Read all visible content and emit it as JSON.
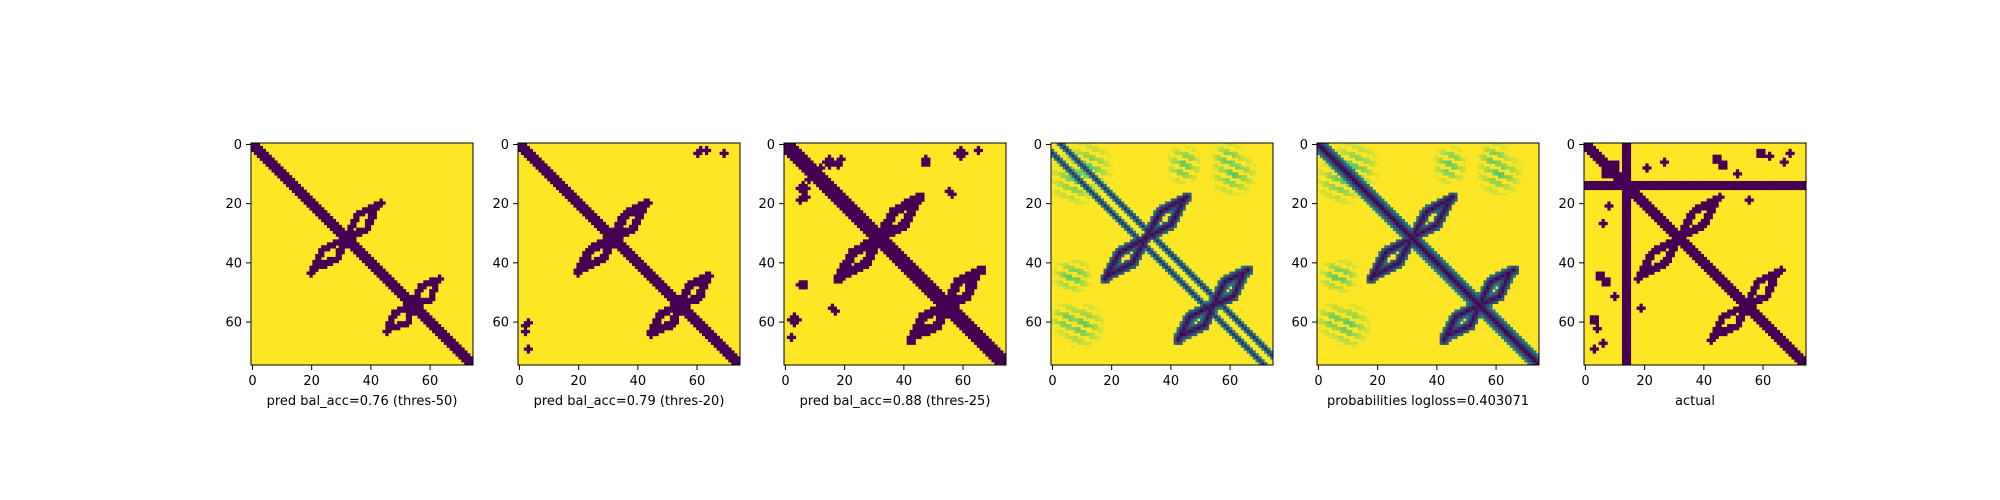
{
  "chart_data": [
    {
      "type": "heatmap",
      "xlabel": "pred bal_acc=0.76 (thres-50)",
      "grid_size": 76,
      "xlim": [
        0,
        75
      ],
      "ylim": [
        75,
        0
      ],
      "x_ticks": [
        "0",
        "20",
        "40",
        "60"
      ],
      "y_ticks": [
        "0",
        "20",
        "40",
        "60"
      ],
      "colormap": "binary",
      "colors": {
        "low": "#440154",
        "high": "#fde725"
      },
      "features": {
        "diagonal": {
          "half_width": 1.6,
          "from": 0,
          "to": 75
        },
        "arcs": [
          {
            "cx": 32,
            "cy": 32,
            "len": 10,
            "dir": "ne",
            "w": 1.2
          },
          {
            "cx": 32,
            "cy": 32,
            "len": 12,
            "dir": "sw",
            "w": 1.2
          },
          {
            "cx": 55,
            "cy": 55,
            "len": 8,
            "dir": "ne",
            "w": 1.2
          },
          {
            "cx": 55,
            "cy": 55,
            "len": 9,
            "dir": "sw",
            "w": 1.2
          }
        ],
        "blobs": []
      }
    },
    {
      "type": "heatmap",
      "xlabel": "pred bal_acc=0.79 (thres-20)",
      "grid_size": 76,
      "xlim": [
        0,
        75
      ],
      "ylim": [
        75,
        0
      ],
      "x_ticks": [
        "0",
        "20",
        "40",
        "60"
      ],
      "y_ticks": [
        "0",
        "20",
        "40",
        "60"
      ],
      "colormap": "binary",
      "colors": {
        "low": "#440154",
        "high": "#fde725"
      },
      "features": {
        "diagonal": {
          "half_width": 1.8,
          "from": 0,
          "to": 75
        },
        "arcs": [
          {
            "cx": 32,
            "cy": 32,
            "len": 10,
            "dir": "ne",
            "w": 1.4
          },
          {
            "cx": 32,
            "cy": 32,
            "len": 12,
            "dir": "sw",
            "w": 1.4
          },
          {
            "cx": 55,
            "cy": 55,
            "len": 9,
            "dir": "ne",
            "w": 1.4
          },
          {
            "cx": 55,
            "cy": 55,
            "len": 10,
            "dir": "sw",
            "w": 1.4
          }
        ],
        "blobs": [
          {
            "x": 61,
            "y": 3,
            "r": 1.2
          },
          {
            "x": 64,
            "y": 2,
            "r": 1.2
          },
          {
            "x": 2,
            "y": 62,
            "r": 1.2
          },
          {
            "x": 3,
            "y": 70,
            "r": 1.2
          }
        ]
      }
    },
    {
      "type": "heatmap",
      "xlabel": "pred bal_acc=0.88 (thres-25)",
      "grid_size": 76,
      "xlim": [
        0,
        75
      ],
      "ylim": [
        75,
        0
      ],
      "x_ticks": [
        "0",
        "20",
        "40",
        "60"
      ],
      "y_ticks": [
        "0",
        "20",
        "40",
        "60"
      ],
      "colormap": "binary",
      "colors": {
        "low": "#440154",
        "high": "#fde725"
      },
      "features": {
        "diagonal": {
          "half_width": 2.3,
          "from": 0,
          "to": 75
        },
        "arcs": [
          {
            "cx": 32,
            "cy": 32,
            "len": 13,
            "dir": "ne",
            "w": 1.6
          },
          {
            "cx": 32,
            "cy": 32,
            "len": 14,
            "dir": "sw",
            "w": 1.6
          },
          {
            "cx": 55,
            "cy": 55,
            "len": 10,
            "dir": "ne",
            "w": 1.6
          },
          {
            "cx": 55,
            "cy": 55,
            "len": 12,
            "dir": "sw",
            "w": 1.6
          }
        ],
        "blobs": [
          {
            "x": 15,
            "y": 6,
            "r": 2.0
          },
          {
            "x": 19,
            "y": 5,
            "r": 1.4
          },
          {
            "x": 8,
            "y": 12,
            "r": 1.4
          },
          {
            "x": 7,
            "y": 18,
            "r": 1.2
          },
          {
            "x": 48,
            "y": 5,
            "r": 1.4
          },
          {
            "x": 60,
            "y": 3,
            "r": 1.6
          },
          {
            "x": 56,
            "y": 16,
            "r": 1.2
          },
          {
            "x": 6,
            "y": 48,
            "r": 1.5
          },
          {
            "x": 17,
            "y": 57,
            "r": 1.3
          },
          {
            "x": 3,
            "y": 60,
            "r": 2.0
          },
          {
            "x": 2,
            "y": 66,
            "r": 1.4
          }
        ]
      }
    },
    {
      "type": "heatmap",
      "xlabel": "",
      "grid_size": 76,
      "xlim": [
        0,
        75
      ],
      "ylim": [
        75,
        0
      ],
      "x_ticks": [
        "0",
        "20",
        "40",
        "60"
      ],
      "y_ticks": [
        "0",
        "20",
        "40",
        "60"
      ],
      "colormap": "viridis-probabilities",
      "colors": {
        "low": "#440154",
        "mid": "#21918c",
        "high": "#fde725"
      },
      "features": {
        "offset_diagonals": [
          3,
          -3
        ],
        "arcs": [
          {
            "cx": 32,
            "cy": 32,
            "len": 13,
            "dir": "ne",
            "w": 1.8
          },
          {
            "cx": 32,
            "cy": 32,
            "len": 14,
            "dir": "sw",
            "w": 1.8
          },
          {
            "cx": 55,
            "cy": 55,
            "len": 10,
            "dir": "ne",
            "w": 1.8
          },
          {
            "cx": 55,
            "cy": 55,
            "len": 12,
            "dir": "sw",
            "w": 1.8
          }
        ],
        "haze": [
          {
            "x": 12,
            "y": 8,
            "r": 9
          },
          {
            "x": 45,
            "y": 6,
            "r": 6
          },
          {
            "x": 60,
            "y": 5,
            "r": 6
          },
          {
            "x": 8,
            "y": 45,
            "r": 6
          },
          {
            "x": 10,
            "y": 62,
            "r": 8
          }
        ]
      }
    },
    {
      "type": "heatmap",
      "xlabel": "probabilities logloss=0.403071",
      "grid_size": 76,
      "xlim": [
        0,
        75
      ],
      "ylim": [
        75,
        0
      ],
      "x_ticks": [
        "0",
        "20",
        "40",
        "60"
      ],
      "y_ticks": [
        "0",
        "20",
        "40",
        "60"
      ],
      "colormap": "viridis-probabilities",
      "colors": {
        "low": "#440154",
        "mid": "#21918c",
        "high": "#fde725"
      },
      "features": {
        "diagonal": {
          "half_width": 2.2,
          "from": 0,
          "to": 75
        },
        "arcs": [
          {
            "cx": 32,
            "cy": 32,
            "len": 13,
            "dir": "ne",
            "w": 1.8
          },
          {
            "cx": 32,
            "cy": 32,
            "len": 14,
            "dir": "sw",
            "w": 1.8
          },
          {
            "cx": 55,
            "cy": 55,
            "len": 10,
            "dir": "ne",
            "w": 1.8
          },
          {
            "cx": 55,
            "cy": 55,
            "len": 12,
            "dir": "sw",
            "w": 1.8
          }
        ],
        "haze": [
          {
            "x": 12,
            "y": 8,
            "r": 9
          },
          {
            "x": 45,
            "y": 6,
            "r": 6
          },
          {
            "x": 60,
            "y": 5,
            "r": 6
          },
          {
            "x": 8,
            "y": 45,
            "r": 6
          },
          {
            "x": 10,
            "y": 62,
            "r": 8
          }
        ]
      }
    },
    {
      "type": "heatmap",
      "xlabel": "actual",
      "grid_size": 76,
      "xlim": [
        0,
        75
      ],
      "ylim": [
        75,
        0
      ],
      "x_ticks": [
        "0",
        "20",
        "40",
        "60"
      ],
      "y_ticks": [
        "0",
        "20",
        "40",
        "60"
      ],
      "colormap": "binary",
      "colors": {
        "low": "#440154",
        "high": "#fde725"
      },
      "features": {
        "diagonal": {
          "half_width": 1.6,
          "from": 0,
          "to": 75
        },
        "cross_lines": [
          {
            "orientation": "row",
            "index": 14,
            "half_width": 1.5
          },
          {
            "orientation": "col",
            "index": 14,
            "half_width": 1.5
          }
        ],
        "arcs": [
          {
            "cx": 32,
            "cy": 32,
            "len": 13,
            "dir": "ne",
            "w": 1.3
          },
          {
            "cx": 32,
            "cy": 32,
            "len": 14,
            "dir": "sw",
            "w": 1.3
          },
          {
            "cx": 55,
            "cy": 55,
            "len": 10,
            "dir": "ne",
            "w": 1.3
          },
          {
            "cx": 55,
            "cy": 55,
            "len": 12,
            "dir": "sw",
            "w": 1.3
          }
        ],
        "blobs": [
          {
            "x": 10,
            "y": 7,
            "r": 1.5
          },
          {
            "x": 21,
            "y": 8,
            "r": 1.2
          },
          {
            "x": 27,
            "y": 6,
            "r": 1.2
          },
          {
            "x": 47,
            "y": 7,
            "r": 1.8
          },
          {
            "x": 52,
            "y": 10,
            "r": 1.4
          },
          {
            "x": 63,
            "y": 4,
            "r": 1.4
          },
          {
            "x": 70,
            "y": 3,
            "r": 1.2
          },
          {
            "x": 5,
            "y": 45,
            "r": 1.5
          },
          {
            "x": 3,
            "y": 60,
            "r": 1.6
          },
          {
            "x": 6,
            "y": 68,
            "r": 1.2
          },
          {
            "x": 19,
            "y": 56,
            "r": 1.2
          }
        ]
      }
    }
  ]
}
